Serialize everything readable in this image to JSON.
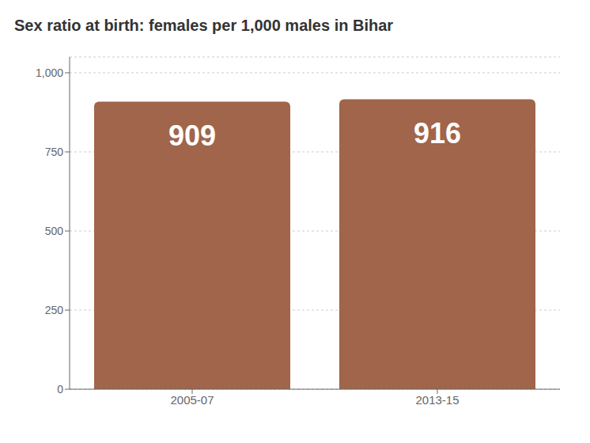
{
  "chart_data": {
    "type": "bar",
    "title": "Sex ratio at birth: females per 1,000 males in Bihar",
    "categories": [
      "2005-07",
      "2013-15"
    ],
    "values": [
      909,
      916
    ],
    "color": "#A0654A",
    "ylim": [
      0,
      1050
    ],
    "yticks": [
      0,
      250,
      500,
      750,
      {
        "value": 1000,
        "label": "1,000"
      }
    ],
    "grid": true,
    "data_labels": true
  }
}
